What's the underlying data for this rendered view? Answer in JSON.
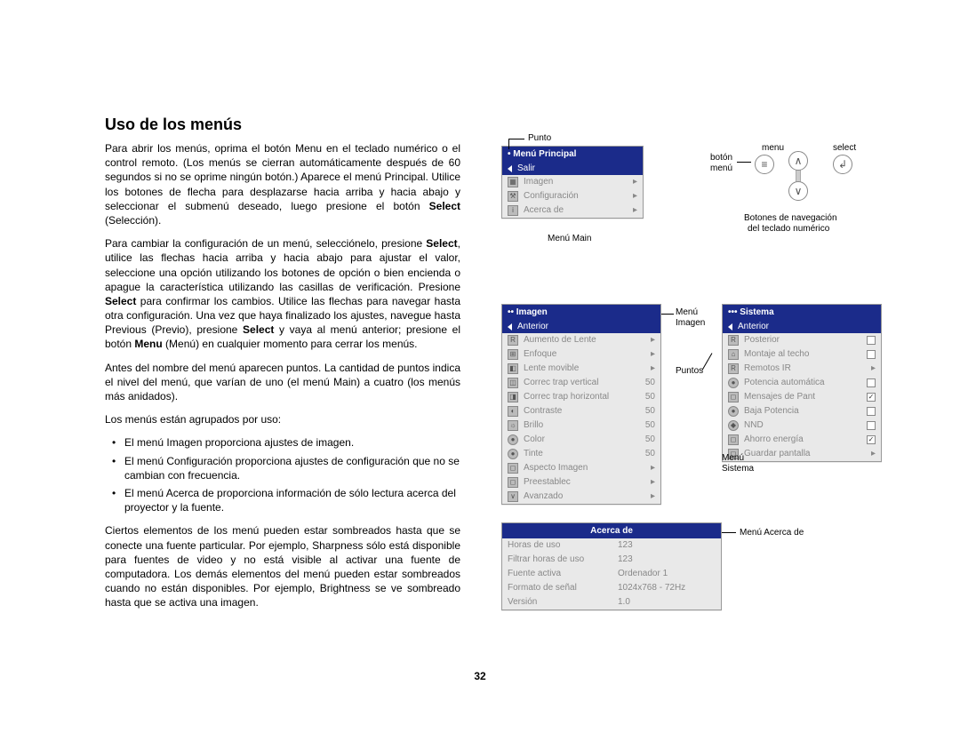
{
  "title": "Uso de los menús",
  "para1": "Para abrir los menús, oprima el botón Menu en el teclado numérico o el control remoto. (Los menús se cierran automáticamente después de 60 segundos si no se oprime ningún botón.) Aparece el menú Principal. Utilice los botones de flecha para desplazarse hacia arriba y hacia abajo y seleccionar el submenú deseado, luego presione el botón ",
  "para1b": " (Selección).",
  "bold_select": "Select",
  "para2a": "Para cambiar la configuración de un menú, selecciónelo, presione ",
  "para2b": ", utilice las flechas hacia arriba y hacia abajo para ajustar el valor, seleccione una opción utilizando los botones de opción o bien encienda o apague la característica utilizando las casillas de verificación. Presione ",
  "para2c": " para confirmar los cambios. Utilice las flechas para navegar hasta otra configuración. Una vez que haya finalizado los ajustes, navegue hasta Previous (Previo), presione ",
  "para2d": " y vaya al menú anterior; presione el botón ",
  "bold_menu": "Menu",
  "para2e": " (Menú) en cualquier momento para cerrar los menús.",
  "para3": "Antes del nombre del menú aparecen puntos. La cantidad de puntos indica el nivel del menú, que varían de uno (el menú Main) a cuatro (los menús más anidados).",
  "para4": "Los menús están agrupados por uso:",
  "bul1": "El menú Imagen proporciona ajustes de imagen.",
  "bul2": "El menú Configuración proporciona ajustes de configuración que no se cambian con frecuencia.",
  "bul3": "El menú Acerca de proporciona información de sólo lectura acerca del proyector y la fuente.",
  "para5": "Ciertos elementos de los menú pueden estar sombreados hasta que se conecte una fuente particular. Por ejemplo, Sharpness sólo está disponible para fuentes de video y no está visible al activar una fuente de computadora. Los demás elementos del menú pueden estar sombreados cuando no están disponibles. Por ejemplo, Brightness se ve sombreado hasta que se activa una imagen.",
  "page_number": "32",
  "lbl_punto": "Punto",
  "lbl_menu_main": "Menú Main",
  "lbl_boton_menu1": "botón",
  "lbl_boton_menu2": "menú",
  "lbl_menu": "menu",
  "lbl_select_word": "select",
  "lbl_botones1": "Botones de navegación",
  "lbl_botones2": "del teclado numérico",
  "lbl_menu_img1": "Menú",
  "lbl_menu_img2": "Imagen",
  "lbl_puntos": "Puntos",
  "lbl_menu_sis1": "Menú",
  "lbl_menu_sis2": "Sistema",
  "lbl_menu_acerca": "Menú Acerca de",
  "main_menu": {
    "header": "•  Menú Principal",
    "sel": "Salir",
    "r1": "Imagen",
    "r2": "Configuración",
    "r3": "Acerca de",
    "ico1": "▦",
    "ico2": "⚒",
    "ico3": "i"
  },
  "img_menu": {
    "header": "••  Imagen",
    "sel": "Anterior",
    "rows": [
      {
        "i": "R",
        "t": "Aumento de Lente",
        "a": "▸"
      },
      {
        "i": "⊞",
        "t": "Enfoque",
        "a": "▸"
      },
      {
        "i": "◧",
        "t": "Lente movible",
        "a": "▸"
      },
      {
        "i": "◫",
        "t": "Correc trap vertical",
        "v": "50"
      },
      {
        "i": "◨",
        "t": "Correc trap horizontal",
        "v": "50"
      },
      {
        "i": "◐",
        "t": "Contraste",
        "v": "50"
      },
      {
        "i": "☼",
        "t": "Brillo",
        "v": "50"
      },
      {
        "i": "●",
        "t": "Color",
        "v": "50",
        "cls": "ico-c"
      },
      {
        "i": "●",
        "t": "Tinte",
        "v": "50",
        "cls": "ico-g"
      },
      {
        "i": "◻",
        "t": "Aspecto Imagen",
        "a": "▸"
      },
      {
        "i": "◻",
        "t": "Preestablec",
        "a": "▸"
      },
      {
        "i": "∨",
        "t": "Avanzado",
        "a": "▸"
      }
    ]
  },
  "sis_menu": {
    "header": "•••  Sistema",
    "sel": "Anterior",
    "rows": [
      {
        "i": "R",
        "t": "Posterior",
        "c": ""
      },
      {
        "i": "⌂",
        "t": "Montaje al techo",
        "c": ""
      },
      {
        "i": "R",
        "t": "Remotos IR",
        "a": "▸"
      },
      {
        "i": "●",
        "t": "Potencia automática",
        "c": "",
        "cls": "ico-b"
      },
      {
        "i": "◻",
        "t": "Mensajes de Pant",
        "c": "✓"
      },
      {
        "i": "●",
        "t": "Baja Potencia",
        "c": "",
        "cls": "ico-y"
      },
      {
        "i": "◆",
        "t": "NND",
        "c": "",
        "cls": "ico-r"
      },
      {
        "i": "◻",
        "t": "Ahorro energía",
        "c": "✓"
      },
      {
        "i": "◻",
        "t": "Guardar pantalla",
        "a": "▸"
      }
    ]
  },
  "acerca": {
    "header": "Acerca de",
    "rows": [
      {
        "t": "Horas de uso",
        "v": "123"
      },
      {
        "t": "Filtrar horas de uso",
        "v": "123"
      },
      {
        "t": "Fuente activa",
        "v": "Ordenador 1"
      },
      {
        "t": "Formato de señal",
        "v": "1024x768 - 72Hz"
      },
      {
        "t": "Versión",
        "v": "1.0"
      }
    ]
  }
}
